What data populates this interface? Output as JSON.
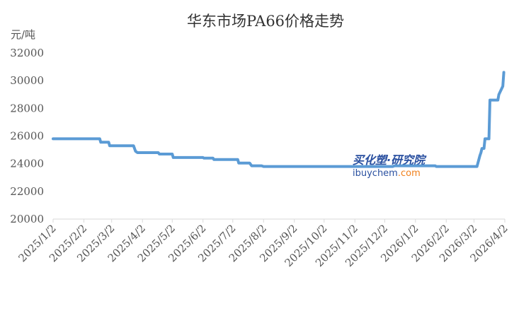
{
  "chart_data": {
    "type": "line",
    "title": "华东市场PA66价格走势",
    "unit_label": "元/吨",
    "xlabel": "",
    "ylabel": "",
    "ylim": [
      20000,
      32000
    ],
    "yticks": [
      "20000",
      "22000",
      "24000",
      "26000",
      "28000",
      "30000",
      "32000"
    ],
    "x_range": [
      "2025-01-02",
      "2026-04-02"
    ],
    "xticks": [
      {
        "label": "2025/1/2",
        "date": "2025-01-02"
      },
      {
        "label": "2025/2/2",
        "date": "2025-02-02"
      },
      {
        "label": "2025/3/2",
        "date": "2025-03-02"
      },
      {
        "label": "2025/4/2",
        "date": "2025-04-02"
      },
      {
        "label": "2025/5/2",
        "date": "2025-05-02"
      },
      {
        "label": "2025/6/2",
        "date": "2025-06-02"
      },
      {
        "label": "2025/7/2",
        "date": "2025-07-02"
      },
      {
        "label": "2025/8/2",
        "date": "2025-08-02"
      },
      {
        "label": "2025/9/2",
        "date": "2025-09-02"
      },
      {
        "label": "2025/10/2",
        "date": "2025-10-02"
      },
      {
        "label": "2025/11/2",
        "date": "2025-11-02"
      },
      {
        "label": "2025/12/2",
        "date": "2025-12-02"
      },
      {
        "label": "2026/1/2",
        "date": "2026-01-02"
      },
      {
        "label": "2026/2/2",
        "date": "2026-02-02"
      },
      {
        "label": "2026/3/2",
        "date": "2026-03-02"
      },
      {
        "label": "2026/4/2",
        "date": "2026-04-02"
      }
    ],
    "grid": false,
    "legend": "none",
    "series": [
      {
        "color": "#5b9bd5",
        "points": [
          {
            "x": "2025-01-02",
            "y": 25800
          },
          {
            "x": "2025-02-18",
            "y": 25800
          },
          {
            "x": "2025-02-19",
            "y": 25550
          },
          {
            "x": "2025-02-27",
            "y": 25550
          },
          {
            "x": "2025-02-28",
            "y": 25300
          },
          {
            "x": "2025-03-24",
            "y": 25300
          },
          {
            "x": "2025-03-26",
            "y": 24900
          },
          {
            "x": "2025-03-28",
            "y": 24800
          },
          {
            "x": "2025-04-18",
            "y": 24800
          },
          {
            "x": "2025-04-19",
            "y": 24700
          },
          {
            "x": "2025-05-02",
            "y": 24700
          },
          {
            "x": "2025-05-03",
            "y": 24450
          },
          {
            "x": "2025-06-02",
            "y": 24450
          },
          {
            "x": "2025-06-03",
            "y": 24400
          },
          {
            "x": "2025-06-12",
            "y": 24400
          },
          {
            "x": "2025-06-13",
            "y": 24300
          },
          {
            "x": "2025-07-07",
            "y": 24300
          },
          {
            "x": "2025-07-08",
            "y": 24050
          },
          {
            "x": "2025-07-19",
            "y": 24050
          },
          {
            "x": "2025-07-21",
            "y": 23850
          },
          {
            "x": "2025-07-31",
            "y": 23850
          },
          {
            "x": "2025-08-02",
            "y": 23800
          },
          {
            "x": "2025-12-10",
            "y": 23800
          },
          {
            "x": "2025-12-12",
            "y": 23850
          },
          {
            "x": "2026-01-22",
            "y": 23850
          },
          {
            "x": "2026-01-23",
            "y": 23800
          },
          {
            "x": "2026-03-05",
            "y": 23800
          },
          {
            "x": "2026-03-08",
            "y": 24600
          },
          {
            "x": "2026-03-09",
            "y": 24800
          },
          {
            "x": "2026-03-10",
            "y": 25100
          },
          {
            "x": "2026-03-12",
            "y": 25100
          },
          {
            "x": "2026-03-13",
            "y": 25800
          },
          {
            "x": "2026-03-17",
            "y": 25800
          },
          {
            "x": "2026-03-18",
            "y": 28600
          },
          {
            "x": "2026-03-26",
            "y": 28600
          },
          {
            "x": "2026-03-27",
            "y": 29000
          },
          {
            "x": "2026-03-31",
            "y": 29600
          },
          {
            "x": "2026-04-01",
            "y": 30600
          }
        ]
      }
    ]
  },
  "watermark": {
    "line1": "买化塑·研究院",
    "line2_a": "ibuychem",
    "line2_b": ".com",
    "color_a": "#2a50a0",
    "color_b": "#f07f1a"
  }
}
